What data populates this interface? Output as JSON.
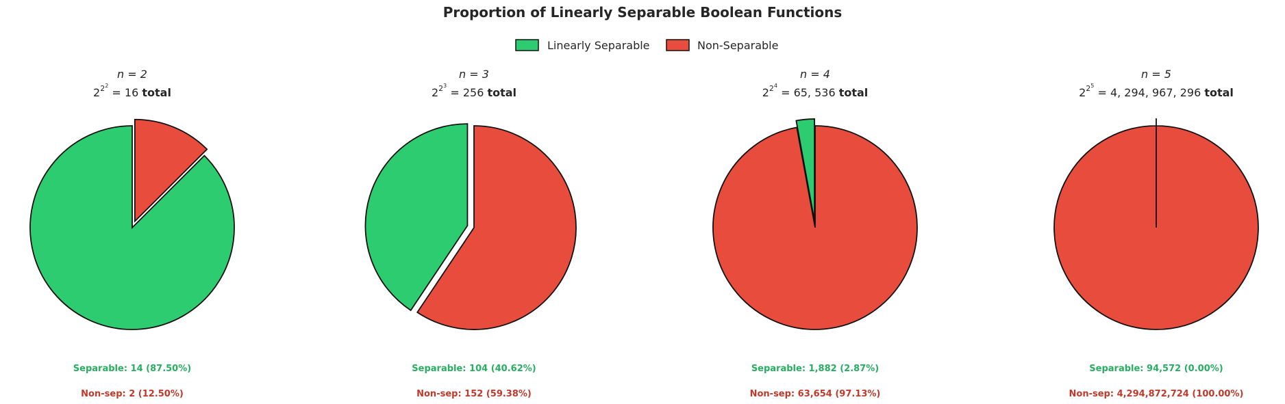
{
  "figure": {
    "title": "Proportion of Linearly Separable Boolean Functions",
    "legend": [
      {
        "label": "Linearly Separable",
        "color": "#2ecc71"
      },
      {
        "label": "Non-Separable",
        "color": "#e74c3c"
      }
    ],
    "colors": {
      "separable": "#2ecc71",
      "nonseparable": "#e74c3c",
      "separable_text": "#27ae60",
      "nonseparable_text": "#c0392b"
    }
  },
  "chart_data": [
    {
      "type": "pie",
      "title_n": "n = 2",
      "title_base": "2",
      "title_exp_base": "2",
      "title_exp_sup": "2",
      "title_value": " = 16 ",
      "title_total": "total",
      "slices": [
        {
          "name": "Linearly Separable",
          "value": 14,
          "color": "#2ecc71"
        },
        {
          "name": "Non-Separable",
          "value": 2,
          "color": "#e74c3c",
          "exploded": true
        }
      ],
      "separable_label": "Separable: 14 (87.50%)",
      "nonsep_label": "Non-sep: 2 (12.50%)"
    },
    {
      "type": "pie",
      "title_n": "n = 3",
      "title_base": "2",
      "title_exp_base": "2",
      "title_exp_sup": "3",
      "title_value": " = 256 ",
      "title_total": "total",
      "slices": [
        {
          "name": "Linearly Separable",
          "value": 104,
          "color": "#2ecc71",
          "exploded": true
        },
        {
          "name": "Non-Separable",
          "value": 152,
          "color": "#e74c3c"
        }
      ],
      "separable_label": "Separable: 104 (40.62%)",
      "nonsep_label": "Non-sep: 152 (59.38%)"
    },
    {
      "type": "pie",
      "title_n": "n = 4",
      "title_base": "2",
      "title_exp_base": "2",
      "title_exp_sup": "4",
      "title_value": " = 65, 536 ",
      "title_total": "total",
      "slices": [
        {
          "name": "Linearly Separable",
          "value": 1882,
          "color": "#2ecc71",
          "exploded": true
        },
        {
          "name": "Non-Separable",
          "value": 63654,
          "color": "#e74c3c"
        }
      ],
      "separable_label": "Separable: 1,882 (2.87%)",
      "nonsep_label": "Non-sep: 63,654 (97.13%)"
    },
    {
      "type": "pie",
      "title_n": "n = 5",
      "title_base": "2",
      "title_exp_base": "2",
      "title_exp_sup": "5",
      "title_value": " = 4, 294, 967, 296 ",
      "title_total": "total",
      "slices": [
        {
          "name": "Linearly Separable",
          "value": 94572,
          "color": "#2ecc71",
          "exploded": true
        },
        {
          "name": "Non-Separable",
          "value": 4294872724,
          "color": "#e74c3c"
        }
      ],
      "separable_label": "Separable: 94,572 (0.00%)",
      "nonsep_label": "Non-sep: 4,294,872,724 (100.00%)"
    }
  ]
}
